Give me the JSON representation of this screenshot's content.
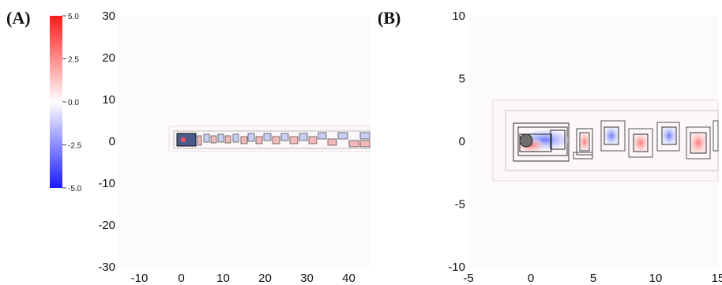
{
  "panels": [
    {
      "label": "(A)",
      "xlim": [
        -15,
        45
      ],
      "ylim": [
        -30,
        30
      ],
      "xticks": [
        -10,
        0,
        10,
        20,
        30,
        40
      ],
      "yticks": [
        30,
        20,
        10,
        0,
        -10,
        -20,
        -30
      ]
    },
    {
      "label": "(B)",
      "xlim": [
        -5,
        15
      ],
      "ylim": [
        -10,
        10
      ],
      "xticks": [
        -5,
        0,
        5,
        10,
        15
      ],
      "yticks": [
        10,
        5,
        0,
        -5,
        -10
      ]
    }
  ],
  "colorbar": {
    "ticks": [
      "5.0",
      "2.5",
      "0.0",
      "-2.5",
      "-5.0"
    ],
    "colors": {
      "max": "#ff1a1a",
      "mid": "#ffffff",
      "min": "#1a1aff"
    }
  }
}
